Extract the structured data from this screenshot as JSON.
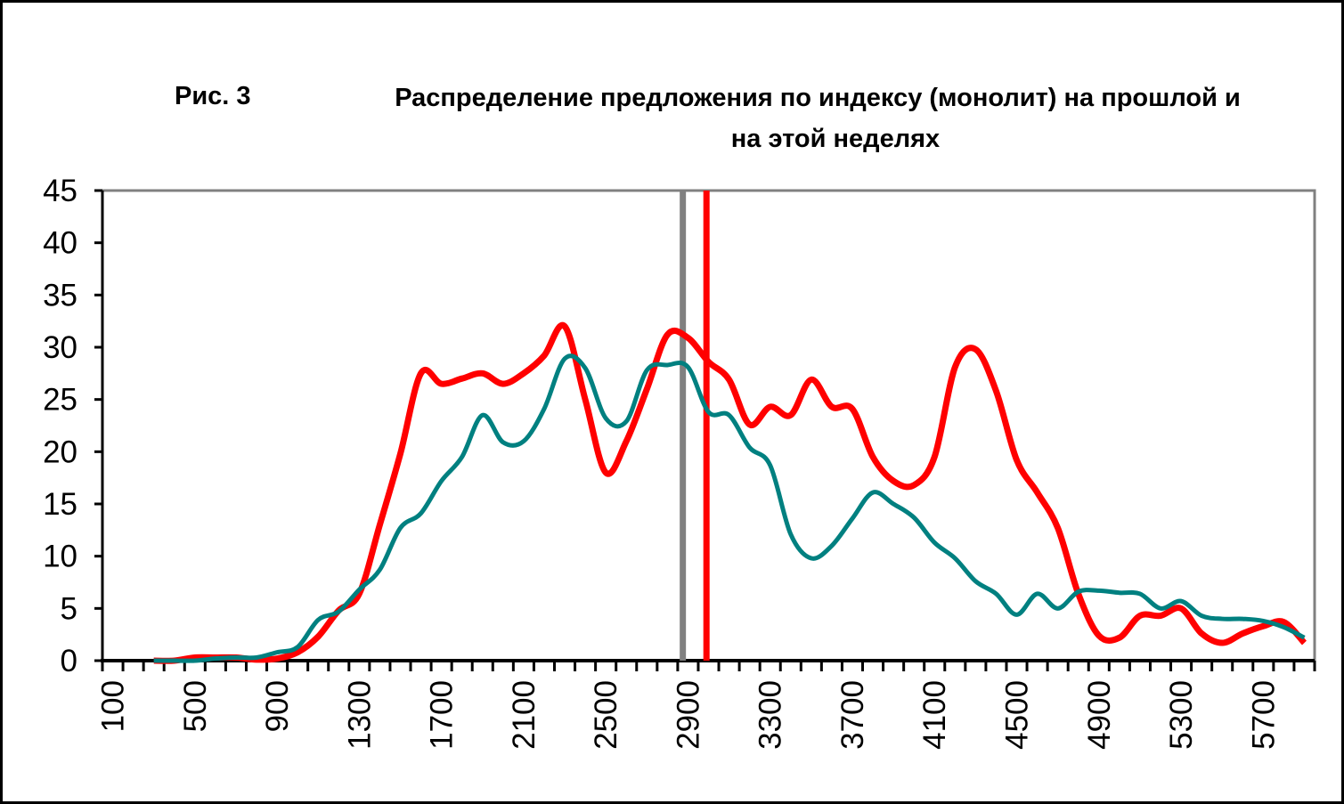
{
  "chart_data": {
    "type": "line",
    "figure_label": "Рис. 3",
    "title_line1": "Распределение предложения по индексу (монолит) на прошлой и",
    "title_line2": "на этой неделях",
    "xlabel": "",
    "ylabel": "",
    "ylim": [
      0,
      45
    ],
    "yticks": [
      "0",
      "5",
      "10",
      "15",
      "20",
      "25",
      "30",
      "35",
      "40",
      "45"
    ],
    "x_categories_start": 100,
    "x_categories_end": 5900,
    "x_categories_step": 100,
    "xtick_labels": [
      "100",
      "500",
      "900",
      "1300",
      "1700",
      "2100",
      "2500",
      "2900",
      "3300",
      "3700",
      "4100",
      "4500",
      "4900",
      "5300",
      "5700"
    ],
    "grid": false,
    "legend": "none",
    "x": [
      300,
      400,
      500,
      600,
      700,
      800,
      900,
      1000,
      1100,
      1200,
      1300,
      1400,
      1500,
      1600,
      1700,
      1800,
      1900,
      2000,
      2100,
      2200,
      2300,
      2400,
      2500,
      2600,
      2700,
      2800,
      2900,
      3000,
      3100,
      3200,
      3300,
      3400,
      3500,
      3600,
      3700,
      3800,
      3900,
      4000,
      4100,
      4200,
      4300,
      4400,
      4500,
      4600,
      4700,
      4800,
      4900,
      5000,
      5100,
      5200,
      5300,
      5400,
      5500,
      5600,
      5700,
      5800,
      5900
    ],
    "series": [
      {
        "name": "red",
        "color": "#FF0000",
        "values": [
          0,
          0,
          0.3,
          0.3,
          0.3,
          0.1,
          0.2,
          0.8,
          2.3,
          4.8,
          6.4,
          13,
          19.8,
          27.5,
          26.5,
          27,
          27.5,
          26.5,
          27.5,
          29.2,
          32,
          25,
          18,
          21,
          26,
          31.2,
          30.9,
          28.6,
          26.9,
          22.6,
          24.3,
          23.5,
          26.9,
          24.3,
          24.1,
          19.5,
          17.2,
          16.8,
          19.5,
          28.1,
          29.8,
          25.8,
          19.2,
          16.1,
          12.7,
          6.4,
          2.4,
          2.2,
          4.3,
          4.3,
          5.0,
          2.6,
          1.7,
          2.6,
          3.3,
          3.7,
          1.7
        ]
      },
      {
        "name": "teal",
        "color": "#008080",
        "values": [
          0,
          0,
          0,
          0.2,
          0.3,
          0.3,
          0.8,
          1.3,
          3.9,
          4.7,
          6.8,
          8.7,
          12.7,
          14.1,
          17.2,
          19.5,
          23.5,
          20.9,
          21,
          24.1,
          28.9,
          28,
          23.2,
          22.9,
          27.8,
          28.3,
          28.1,
          23.8,
          23.5,
          20.4,
          18.7,
          12.1,
          9.8,
          11,
          13.6,
          16.1,
          15,
          13.7,
          11.3,
          9.8,
          7.6,
          6.4,
          4.4,
          6.4,
          5.0,
          6.6,
          6.7,
          6.5,
          6.4,
          5.0,
          5.7,
          4.3,
          4.0,
          4.0,
          3.8,
          3.2,
          2.2
        ]
      }
    ],
    "vertical_markers": [
      {
        "name": "gray",
        "color": "#808080",
        "x": 2875
      },
      {
        "name": "red",
        "color": "#FF0000",
        "x": 2990
      }
    ]
  }
}
